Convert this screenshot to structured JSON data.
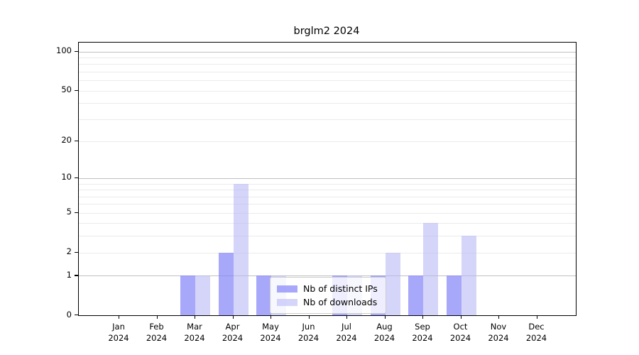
{
  "chart_data": {
    "type": "bar",
    "title": "brglm2 2024",
    "categories": [
      "Jan",
      "Feb",
      "Mar",
      "Apr",
      "May",
      "Jun",
      "Jul",
      "Aug",
      "Sep",
      "Oct",
      "Nov",
      "Dec"
    ],
    "category_year": "2024",
    "series": [
      {
        "name": "Nb of distinct IPs",
        "values": [
          0,
          0,
          1,
          2,
          1,
          0,
          1,
          1,
          1,
          1,
          0,
          0
        ],
        "color": "#aaaaf8"
      },
      {
        "name": "Nb of downloads",
        "values": [
          0,
          0,
          1,
          9,
          1,
          0,
          1,
          2,
          4,
          3,
          0,
          0
        ],
        "color": "#dadaf8"
      }
    ],
    "yscale": "log1p",
    "ylim": [
      0,
      100
    ],
    "yticks": [
      0,
      1,
      2,
      5,
      10,
      20,
      50,
      100
    ],
    "major_gridlines": [
      1,
      10,
      100
    ],
    "minor_gridlines": [
      2,
      3,
      4,
      5,
      6,
      7,
      8,
      9,
      20,
      30,
      40,
      50,
      60,
      70,
      80,
      90
    ],
    "grid": true,
    "legend_position": "lower center",
    "colors": {
      "spine": "#000000",
      "major_grid": "#c0c0c0",
      "minor_grid": "#ebebeb",
      "background": "#ffffff"
    }
  }
}
